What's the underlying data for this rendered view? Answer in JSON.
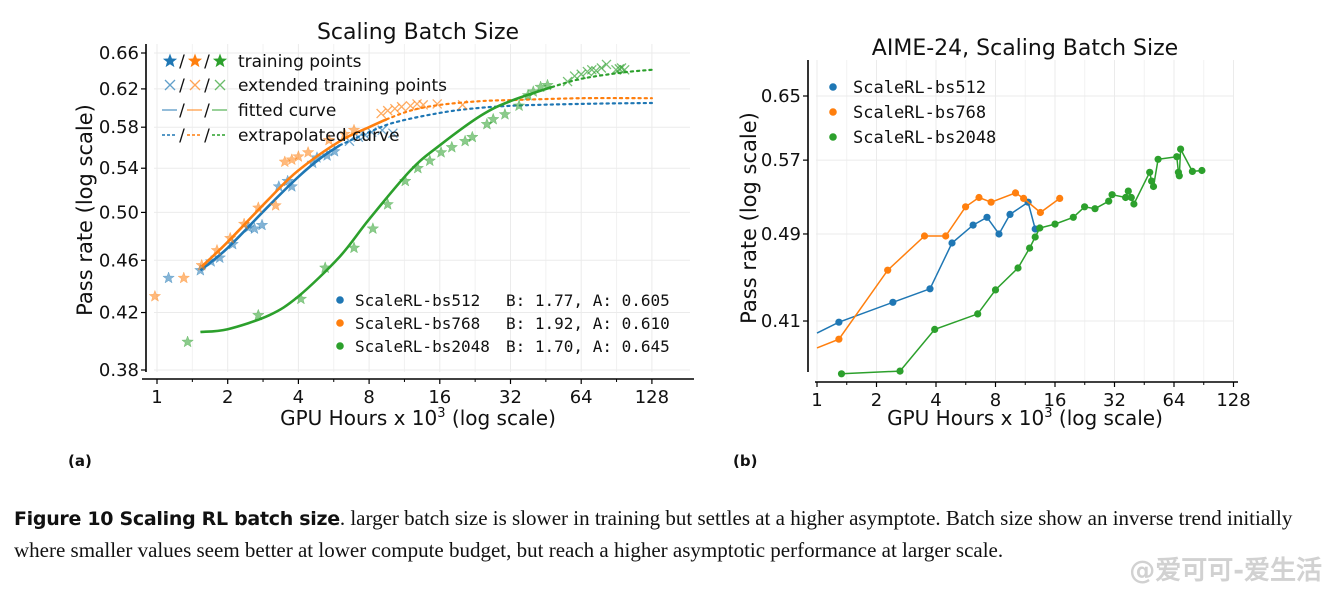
{
  "figure": {
    "label_a": "(a)",
    "label_b": "(b)",
    "caption_bold": "Figure 10  Scaling RL batch size",
    "caption_text": ". larger batch size is slower in training but settles at a higher asymptote. Batch size show an inverse trend initially where smaller values seem better at lower compute budget, but reach a higher asymptotic performance at larger scale.",
    "watermark": "@爱可可-爱生活"
  },
  "chart_data": [
    {
      "type": "scatter",
      "title": "Scaling Batch Size",
      "xlabel": "GPU Hours x 10",
      "xlabel_sup": "3",
      "xlabel_suffix": " (log scale)",
      "ylabel": "Pass rate (log scale)",
      "xscale": "log2",
      "yscale": "log",
      "xlim": [
        0.93,
        150
      ],
      "ylim": [
        0.38,
        0.665
      ],
      "xticks": [
        1,
        2,
        4,
        8,
        16,
        32,
        64,
        128
      ],
      "xtick_labels": [
        "1",
        "2",
        "4",
        "8",
        "16",
        "32",
        "64",
        "128"
      ],
      "yticks": [
        0.38,
        0.42,
        0.46,
        0.5,
        0.54,
        0.58,
        0.62,
        0.66
      ],
      "ytick_labels": [
        "0.38",
        "0.42",
        "0.46",
        "0.50",
        "0.54",
        "0.58",
        "0.62",
        "0.66"
      ],
      "grid": true,
      "legend_markers": {
        "position": "top-left",
        "entries": [
          {
            "symbol": "★/★/★",
            "label": "training points"
          },
          {
            "symbol": "×/×/×",
            "label": "extended training points"
          },
          {
            "symbol": "—/—/—",
            "label": "fitted curve"
          },
          {
            "symbol": "--/--/--",
            "label": "extrapolated curve"
          }
        ]
      },
      "legend_series": {
        "position": "bottom-right",
        "entries": [
          {
            "name": "ScaleRL-bs512",
            "params": "B: 1.77, A: 0.605"
          },
          {
            "name": "ScaleRL-bs768",
            "params": "B: 1.92, A: 0.610"
          },
          {
            "name": "ScaleRL-bs2048",
            "params": "B: 1.70, A: 0.645"
          }
        ]
      },
      "series": [
        {
          "name": "ScaleRL-bs512",
          "color": "#1f77b4",
          "B": 1.77,
          "A": 0.605,
          "training_points": [
            [
              1.12,
              0.446
            ],
            [
              1.53,
              0.452
            ],
            [
              1.7,
              0.459
            ],
            [
              1.85,
              0.462
            ],
            [
              2.1,
              0.473
            ],
            [
              2.45,
              0.487
            ],
            [
              2.6,
              0.486
            ],
            [
              2.8,
              0.489
            ],
            [
              3.3,
              0.523
            ],
            [
              3.6,
              0.528
            ],
            [
              3.75,
              0.523
            ],
            [
              4.6,
              0.545
            ],
            [
              4.8,
              0.55
            ],
            [
              5.3,
              0.552
            ],
            [
              5.7,
              0.556
            ]
          ],
          "extended_points": [
            [
              6.6,
              0.566
            ],
            [
              7.2,
              0.57
            ],
            [
              7.7,
              0.572
            ],
            [
              8.2,
              0.575
            ],
            [
              9.1,
              0.577
            ],
            [
              10.1,
              0.574
            ]
          ],
          "fitted_curve": [
            [
              1.53,
              0.452
            ],
            [
              2,
              0.47
            ],
            [
              3,
              0.506
            ],
            [
              4,
              0.532
            ],
            [
              5,
              0.55
            ],
            [
              6,
              0.562
            ]
          ],
          "extrapolated_curve": [
            [
              6,
              0.562
            ],
            [
              8,
              0.575
            ],
            [
              10,
              0.584
            ],
            [
              14,
              0.592
            ],
            [
              20,
              0.598
            ],
            [
              32,
              0.602
            ],
            [
              64,
              0.604
            ],
            [
              128,
              0.605
            ]
          ]
        },
        {
          "name": "ScaleRL-bs768",
          "color": "#ff7f0e",
          "B": 1.92,
          "A": 0.61,
          "training_points": [
            [
              0.98,
              0.432
            ],
            [
              1.3,
              0.446
            ],
            [
              1.55,
              0.456
            ],
            [
              1.8,
              0.468
            ],
            [
              2.05,
              0.478
            ],
            [
              2.35,
              0.49
            ],
            [
              2.7,
              0.504
            ],
            [
              3.2,
              0.506
            ],
            [
              3.5,
              0.546
            ],
            [
              3.75,
              0.548
            ],
            [
              4.0,
              0.551
            ],
            [
              4.4,
              0.555
            ],
            [
              5.4,
              0.567
            ],
            [
              6.3,
              0.573
            ],
            [
              6.9,
              0.577
            ]
          ],
          "extended_points": [
            [
              9.0,
              0.594
            ],
            [
              9.6,
              0.597
            ],
            [
              10.3,
              0.599
            ],
            [
              11.0,
              0.601
            ],
            [
              12.0,
              0.602
            ],
            [
              12.8,
              0.604
            ],
            [
              13.6,
              0.603
            ],
            [
              15.6,
              0.604
            ],
            [
              20.0,
              0.603
            ]
          ],
          "fitted_curve": [
            [
              1.55,
              0.455
            ],
            [
              2,
              0.475
            ],
            [
              3,
              0.512
            ],
            [
              4,
              0.538
            ],
            [
              6,
              0.566
            ],
            [
              8,
              0.58
            ],
            [
              9.5,
              0.588
            ]
          ],
          "extrapolated_curve": [
            [
              9.5,
              0.588
            ],
            [
              12,
              0.597
            ],
            [
              16,
              0.603
            ],
            [
              24,
              0.607
            ],
            [
              32,
              0.608
            ],
            [
              64,
              0.61
            ],
            [
              128,
              0.61
            ]
          ]
        },
        {
          "name": "ScaleRL-bs2048",
          "color": "#2ca02c",
          "B": 1.7,
          "A": 0.645,
          "training_points": [
            [
              1.35,
              0.399
            ],
            [
              2.7,
              0.418
            ],
            [
              4.1,
              0.43
            ],
            [
              5.2,
              0.454
            ],
            [
              6.9,
              0.47
            ],
            [
              8.3,
              0.486
            ],
            [
              9.6,
              0.507
            ],
            [
              11.4,
              0.528
            ],
            [
              12.9,
              0.54
            ],
            [
              14.5,
              0.547
            ],
            [
              16.2,
              0.555
            ],
            [
              18.0,
              0.56
            ],
            [
              20.5,
              0.566
            ],
            [
              22.0,
              0.57
            ],
            [
              25.4,
              0.583
            ],
            [
              27.0,
              0.588
            ],
            [
              30.3,
              0.593
            ],
            [
              34.8,
              0.602
            ],
            [
              38.0,
              0.613
            ],
            [
              40.0,
              0.617
            ],
            [
              43.0,
              0.622
            ],
            [
              46.0,
              0.624
            ]
          ],
          "extended_points": [
            [
              56,
              0.628
            ],
            [
              60,
              0.634
            ],
            [
              64,
              0.636
            ],
            [
              68,
              0.639
            ],
            [
              71,
              0.641
            ],
            [
              74,
              0.64
            ],
            [
              78,
              0.643
            ],
            [
              82,
              0.647
            ],
            [
              90,
              0.641
            ],
            [
              93,
              0.642
            ],
            [
              95,
              0.643
            ],
            [
              98,
              0.641
            ]
          ],
          "fitted_curve": [
            [
              1.53,
              0.406
            ],
            [
              2,
              0.408
            ],
            [
              3,
              0.418
            ],
            [
              4,
              0.432
            ],
            [
              6,
              0.463
            ],
            [
              8,
              0.494
            ],
            [
              12,
              0.538
            ],
            [
              16,
              0.562
            ],
            [
              24,
              0.592
            ],
            [
              32,
              0.607
            ],
            [
              48,
              0.622
            ]
          ],
          "extrapolated_curve": [
            [
              48,
              0.622
            ],
            [
              64,
              0.631
            ],
            [
              96,
              0.638
            ],
            [
              128,
              0.641
            ]
          ]
        }
      ]
    },
    {
      "type": "line",
      "title": "AIME-24, Scaling Batch Size",
      "xlabel": "GPU Hours x 10",
      "xlabel_sup": "3",
      "xlabel_suffix": " (log scale)",
      "ylabel": "Pass rate (log scale)",
      "xscale": "log2",
      "yscale": "log",
      "xlim": [
        1,
        128
      ],
      "ylim": [
        0.365,
        0.69
      ],
      "xticks": [
        1,
        2,
        4,
        8,
        16,
        32,
        64,
        128
      ],
      "xtick_labels": [
        "1",
        "2",
        "4",
        "8",
        "16",
        "32",
        "64",
        "128"
      ],
      "yticks": [
        0.41,
        0.49,
        0.57,
        0.65
      ],
      "ytick_labels": [
        "0.41",
        "0.49",
        "0.57",
        "0.65"
      ],
      "grid": true,
      "legend": {
        "position": "top-left",
        "entries": [
          "ScaleRL-bs512",
          "ScaleRL-bs768",
          "ScaleRL-bs2048"
        ]
      },
      "series": [
        {
          "name": "ScaleRL-bs512",
          "color": "#1f77b4",
          "line_start": [
            1.0,
            0.4
          ],
          "points": [
            [
              1.29,
              0.409
            ],
            [
              2.42,
              0.426
            ],
            [
              3.73,
              0.438
            ],
            [
              4.82,
              0.481
            ],
            [
              6.16,
              0.499
            ],
            [
              7.25,
              0.507
            ],
            [
              8.33,
              0.49
            ],
            [
              9.47,
              0.51
            ],
            [
              11.7,
              0.523
            ],
            [
              12.7,
              0.495
            ]
          ]
        },
        {
          "name": "ScaleRL-bs768",
          "color": "#ff7f0e",
          "line_start": [
            1.0,
            0.388
          ],
          "points": [
            [
              1.29,
              0.395
            ],
            [
              2.28,
              0.455
            ],
            [
              3.5,
              0.488
            ],
            [
              4.48,
              0.488
            ],
            [
              5.65,
              0.518
            ],
            [
              6.6,
              0.528
            ],
            [
              7.6,
              0.523
            ],
            [
              10.1,
              0.533
            ],
            [
              11.1,
              0.527
            ],
            [
              13.5,
              0.512
            ],
            [
              16.9,
              0.527
            ]
          ]
        },
        {
          "name": "ScaleRL-bs2048",
          "color": "#2ca02c",
          "points": [
            [
              1.33,
              0.368
            ],
            [
              2.63,
              0.37
            ],
            [
              3.94,
              0.403
            ],
            [
              6.5,
              0.416
            ],
            [
              8.0,
              0.437
            ],
            [
              10.4,
              0.457
            ],
            [
              11.9,
              0.476
            ],
            [
              12.7,
              0.487
            ],
            [
              13.4,
              0.496
            ],
            [
              16.0,
              0.5
            ],
            [
              19.8,
              0.507
            ],
            [
              22.6,
              0.518
            ],
            [
              25.5,
              0.516
            ],
            [
              29.9,
              0.524
            ],
            [
              31.1,
              0.531
            ],
            [
              36.4,
              0.528
            ],
            [
              37.6,
              0.535
            ],
            [
              38.9,
              0.528
            ],
            [
              40.1,
              0.521
            ],
            [
              48.2,
              0.556
            ],
            [
              49.3,
              0.546
            ],
            [
              50.4,
              0.54
            ],
            [
              53.2,
              0.571
            ],
            [
              66.1,
              0.574
            ],
            [
              67.4,
              0.556
            ],
            [
              68.1,
              0.552
            ],
            [
              69.1,
              0.583
            ],
            [
              79.3,
              0.557
            ],
            [
              88.6,
              0.558
            ]
          ]
        }
      ]
    }
  ]
}
